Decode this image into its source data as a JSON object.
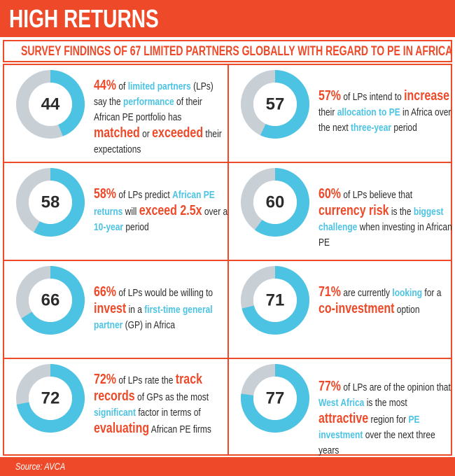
{
  "header": {
    "title": "HIGH RETURNS"
  },
  "subtitle": "SURVEY FINDINGS OF 67 LIMITED PARTNERS GLOBALLY WITH REGARD TO PE IN AFRICA",
  "footer": {
    "source": "Source: AVCA"
  },
  "colors": {
    "accent": "#ee4a29",
    "highlight_blue": "#4cc3e3",
    "ring_grey": "#c8d0d6",
    "text": "#2b2b2b"
  },
  "chart_data": {
    "type": "donut",
    "findings": [
      {
        "value": 44,
        "label": "44",
        "pct": "44%",
        "segs": [
          [
            "o",
            ""
          ],
          [
            "n",
            " of "
          ],
          [
            "b",
            "limited partners"
          ],
          [
            "n",
            " (LPs) say the "
          ],
          [
            "b",
            "performance"
          ],
          [
            "n",
            " of their African PE portfolio has "
          ],
          [
            "O",
            "matched"
          ],
          [
            "n",
            " or "
          ],
          [
            "O",
            "exceeded"
          ],
          [
            "n",
            " their expectations"
          ]
        ]
      },
      {
        "value": 57,
        "label": "57",
        "pct": "57%",
        "segs": [
          [
            "n",
            " of LPs intend to "
          ],
          [
            "O",
            "increase"
          ],
          [
            "n",
            " their "
          ],
          [
            "b",
            "allocation to PE"
          ],
          [
            "n",
            " in Africa over the next "
          ],
          [
            "b",
            "three-year"
          ],
          [
            "n",
            " period"
          ]
        ]
      },
      {
        "value": 58,
        "label": "58",
        "pct": "58%",
        "segs": [
          [
            "n",
            " of LPs predict "
          ],
          [
            "b",
            "African PE returns"
          ],
          [
            "n",
            " will "
          ],
          [
            "O",
            "exceed 2.5x"
          ],
          [
            "n",
            " over a "
          ],
          [
            "b",
            "10-year"
          ],
          [
            "n",
            " period"
          ]
        ]
      },
      {
        "value": 60,
        "label": "60",
        "pct": "60%",
        "segs": [
          [
            "n",
            " of LPs believe that "
          ],
          [
            "O",
            "currency risk"
          ],
          [
            "n",
            " is the "
          ],
          [
            "b",
            "biggest challenge"
          ],
          [
            "n",
            " when investing in African PE"
          ]
        ]
      },
      {
        "value": 66,
        "label": "66",
        "pct": "66%",
        "segs": [
          [
            "n",
            " of LPs would be willing to "
          ],
          [
            "O",
            "invest"
          ],
          [
            "n",
            " in a "
          ],
          [
            "b",
            "first-time general partner"
          ],
          [
            "n",
            " (GP) in Africa"
          ]
        ]
      },
      {
        "value": 71,
        "label": "71",
        "pct": "71%",
        "segs": [
          [
            "n",
            " are currently "
          ],
          [
            "b",
            "looking"
          ],
          [
            "n",
            " for a "
          ],
          [
            "O",
            "co-investment"
          ],
          [
            "n",
            " option"
          ]
        ]
      },
      {
        "value": 72,
        "label": "72",
        "pct": "72%",
        "segs": [
          [
            "n",
            " of LPs rate the "
          ],
          [
            "O",
            "track records"
          ],
          [
            "n",
            " of GPs as the most "
          ],
          [
            "b",
            "significant"
          ],
          [
            "n",
            " factor in terms of "
          ],
          [
            "O",
            "evaluating"
          ],
          [
            "n",
            " African PE firms"
          ]
        ]
      },
      {
        "value": 77,
        "label": "77",
        "pct": "77%",
        "segs": [
          [
            "n",
            " of LPs are of the opinion that "
          ],
          [
            "b",
            "West Africa"
          ],
          [
            "n",
            " is the most "
          ],
          [
            "O",
            "attractive"
          ],
          [
            "n",
            " region for "
          ],
          [
            "b",
            "PE investment"
          ],
          [
            "n",
            " over the next three years"
          ]
        ]
      }
    ]
  }
}
